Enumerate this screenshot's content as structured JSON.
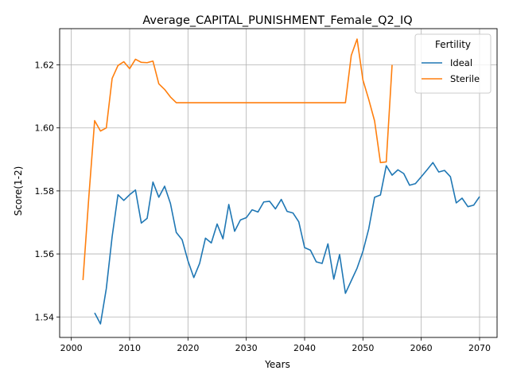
{
  "chart_data": {
    "type": "line",
    "title": "Average_CAPITAL_PUNISHMENT_Female_Q2_IQ",
    "xlabel": "Years",
    "ylabel": "Score(1-2)",
    "xlim": [
      1998,
      2073
    ],
    "ylim": [
      1.5335,
      1.6315
    ],
    "xticks": [
      2000,
      2010,
      2020,
      2030,
      2040,
      2050,
      2060,
      2070
    ],
    "yticks": [
      1.54,
      1.56,
      1.58,
      1.6,
      1.62
    ],
    "ytick_labels": [
      "1.54",
      "1.56",
      "1.58",
      "1.60",
      "1.62"
    ],
    "grid": true,
    "legend": {
      "title": "Fertility",
      "position": "top-right"
    },
    "series": [
      {
        "name": "Ideal",
        "color": "#1f77b4",
        "points": [
          [
            2004,
            1.5413
          ],
          [
            2005,
            1.5378
          ],
          [
            2006,
            1.549
          ],
          [
            2007,
            1.5655
          ],
          [
            2008,
            1.5788
          ],
          [
            2009,
            1.577
          ],
          [
            2010,
            1.5788
          ],
          [
            2011,
            1.5803
          ],
          [
            2012,
            1.5698
          ],
          [
            2013,
            1.5713
          ],
          [
            2014,
            1.5828
          ],
          [
            2015,
            1.578
          ],
          [
            2016,
            1.5815
          ],
          [
            2017,
            1.576
          ],
          [
            2018,
            1.5668
          ],
          [
            2019,
            1.5645
          ],
          [
            2020,
            1.5578
          ],
          [
            2021,
            1.5525
          ],
          [
            2022,
            1.557
          ],
          [
            2023,
            1.565
          ],
          [
            2024,
            1.5635
          ],
          [
            2025,
            1.5695
          ],
          [
            2026,
            1.5648
          ],
          [
            2027,
            1.5757
          ],
          [
            2028,
            1.5672
          ],
          [
            2029,
            1.5708
          ],
          [
            2030,
            1.5715
          ],
          [
            2031,
            1.574
          ],
          [
            2032,
            1.5733
          ],
          [
            2033,
            1.5765
          ],
          [
            2034,
            1.5767
          ],
          [
            2035,
            1.5743
          ],
          [
            2036,
            1.5773
          ],
          [
            2037,
            1.5735
          ],
          [
            2038,
            1.573
          ],
          [
            2039,
            1.5702
          ],
          [
            2040,
            1.562
          ],
          [
            2041,
            1.5612
          ],
          [
            2042,
            1.5575
          ],
          [
            2043,
            1.557
          ],
          [
            2044,
            1.5632
          ],
          [
            2045,
            1.552
          ],
          [
            2046,
            1.5598
          ],
          [
            2047,
            1.5475
          ],
          [
            2048,
            1.5515
          ],
          [
            2049,
            1.5555
          ],
          [
            2050,
            1.5608
          ],
          [
            2051,
            1.568
          ],
          [
            2052,
            1.578
          ],
          [
            2053,
            1.5787
          ],
          [
            2054,
            1.588
          ],
          [
            2055,
            1.585
          ],
          [
            2056,
            1.5867
          ],
          [
            2057,
            1.5855
          ],
          [
            2058,
            1.5818
          ],
          [
            2059,
            1.5823
          ],
          [
            2060,
            1.5845
          ],
          [
            2061,
            1.5867
          ],
          [
            2062,
            1.589
          ],
          [
            2063,
            1.586
          ],
          [
            2064,
            1.5865
          ],
          [
            2065,
            1.5845
          ],
          [
            2066,
            1.5762
          ],
          [
            2067,
            1.5777
          ],
          [
            2068,
            1.575
          ],
          [
            2069,
            1.5755
          ],
          [
            2070,
            1.5782
          ]
        ]
      },
      {
        "name": "Sterile",
        "color": "#ff7f0e",
        "points": [
          [
            2002,
            1.5517
          ],
          [
            2003,
            1.578
          ],
          [
            2004,
            1.6023
          ],
          [
            2005,
            1.599
          ],
          [
            2006,
            1.6
          ],
          [
            2007,
            1.6157
          ],
          [
            2008,
            1.6198
          ],
          [
            2009,
            1.621
          ],
          [
            2010,
            1.6188
          ],
          [
            2011,
            1.6218
          ],
          [
            2012,
            1.6208
          ],
          [
            2013,
            1.6207
          ],
          [
            2014,
            1.6212
          ],
          [
            2015,
            1.614
          ],
          [
            2016,
            1.6122
          ],
          [
            2017,
            1.6098
          ],
          [
            2018,
            1.608
          ],
          [
            2020,
            1.608
          ],
          [
            2025,
            1.608
          ],
          [
            2030,
            1.608
          ],
          [
            2035,
            1.608
          ],
          [
            2040,
            1.608
          ],
          [
            2045,
            1.608
          ],
          [
            2047,
            1.608
          ],
          [
            2048,
            1.623
          ],
          [
            2049,
            1.6282
          ],
          [
            2050,
            1.6152
          ],
          [
            2051,
            1.609
          ],
          [
            2052,
            1.6022
          ],
          [
            2053,
            1.589
          ],
          [
            2054,
            1.5892
          ],
          [
            2055,
            1.62
          ]
        ]
      }
    ]
  }
}
